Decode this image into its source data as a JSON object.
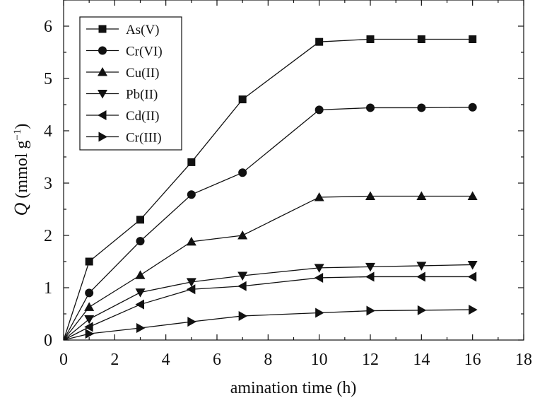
{
  "chart_data": {
    "type": "line",
    "title": "",
    "xlabel": "amination time (h)",
    "ylabel_italic": "Q",
    "ylabel_units": "(mmol g",
    "ylabel_sup": "−1",
    "ylabel_close": ")",
    "xlim": [
      0,
      18
    ],
    "ylim": [
      0,
      6.5
    ],
    "xticks": [
      "0",
      "2",
      "4",
      "6",
      "8",
      "10",
      "12",
      "14",
      "16",
      "18"
    ],
    "yticks": [
      "0",
      "1",
      "2",
      "3",
      "4",
      "5",
      "6"
    ],
    "legend_position": "top-left",
    "series": [
      {
        "name": "As(V)",
        "marker": "square",
        "x": [
          0,
          1,
          3,
          5,
          7,
          10,
          12,
          14,
          16
        ],
        "y": [
          0,
          1.5,
          2.3,
          3.4,
          4.6,
          5.7,
          5.75,
          5.75,
          5.75
        ]
      },
      {
        "name": "Cr(VI)",
        "marker": "circle",
        "x": [
          0,
          1,
          3,
          5,
          7,
          10,
          12,
          14,
          16
        ],
        "y": [
          0,
          0.9,
          1.89,
          2.78,
          3.2,
          4.4,
          4.44,
          4.44,
          4.45
        ]
      },
      {
        "name": "Cu(II)",
        "marker": "triangle-up",
        "x": [
          0,
          1,
          3,
          5,
          7,
          10,
          12,
          14,
          16
        ],
        "y": [
          0,
          0.63,
          1.24,
          1.88,
          2.0,
          2.73,
          2.75,
          2.75,
          2.75
        ]
      },
      {
        "name": "Pb(II)",
        "marker": "triangle-down",
        "x": [
          0,
          1,
          3,
          5,
          7,
          10,
          12,
          14,
          16
        ],
        "y": [
          0,
          0.4,
          0.91,
          1.11,
          1.23,
          1.38,
          1.4,
          1.42,
          1.44
        ]
      },
      {
        "name": "Cd(II)",
        "marker": "triangle-left",
        "x": [
          0,
          1,
          3,
          5,
          7,
          10,
          12,
          14,
          16
        ],
        "y": [
          0,
          0.25,
          0.68,
          0.97,
          1.03,
          1.19,
          1.21,
          1.21,
          1.21
        ]
      },
      {
        "name": "Cr(III)",
        "marker": "triangle-right",
        "x": [
          0,
          1,
          3,
          5,
          7,
          10,
          12,
          14,
          16
        ],
        "y": [
          0,
          0.12,
          0.23,
          0.35,
          0.46,
          0.52,
          0.56,
          0.57,
          0.58
        ]
      }
    ]
  }
}
